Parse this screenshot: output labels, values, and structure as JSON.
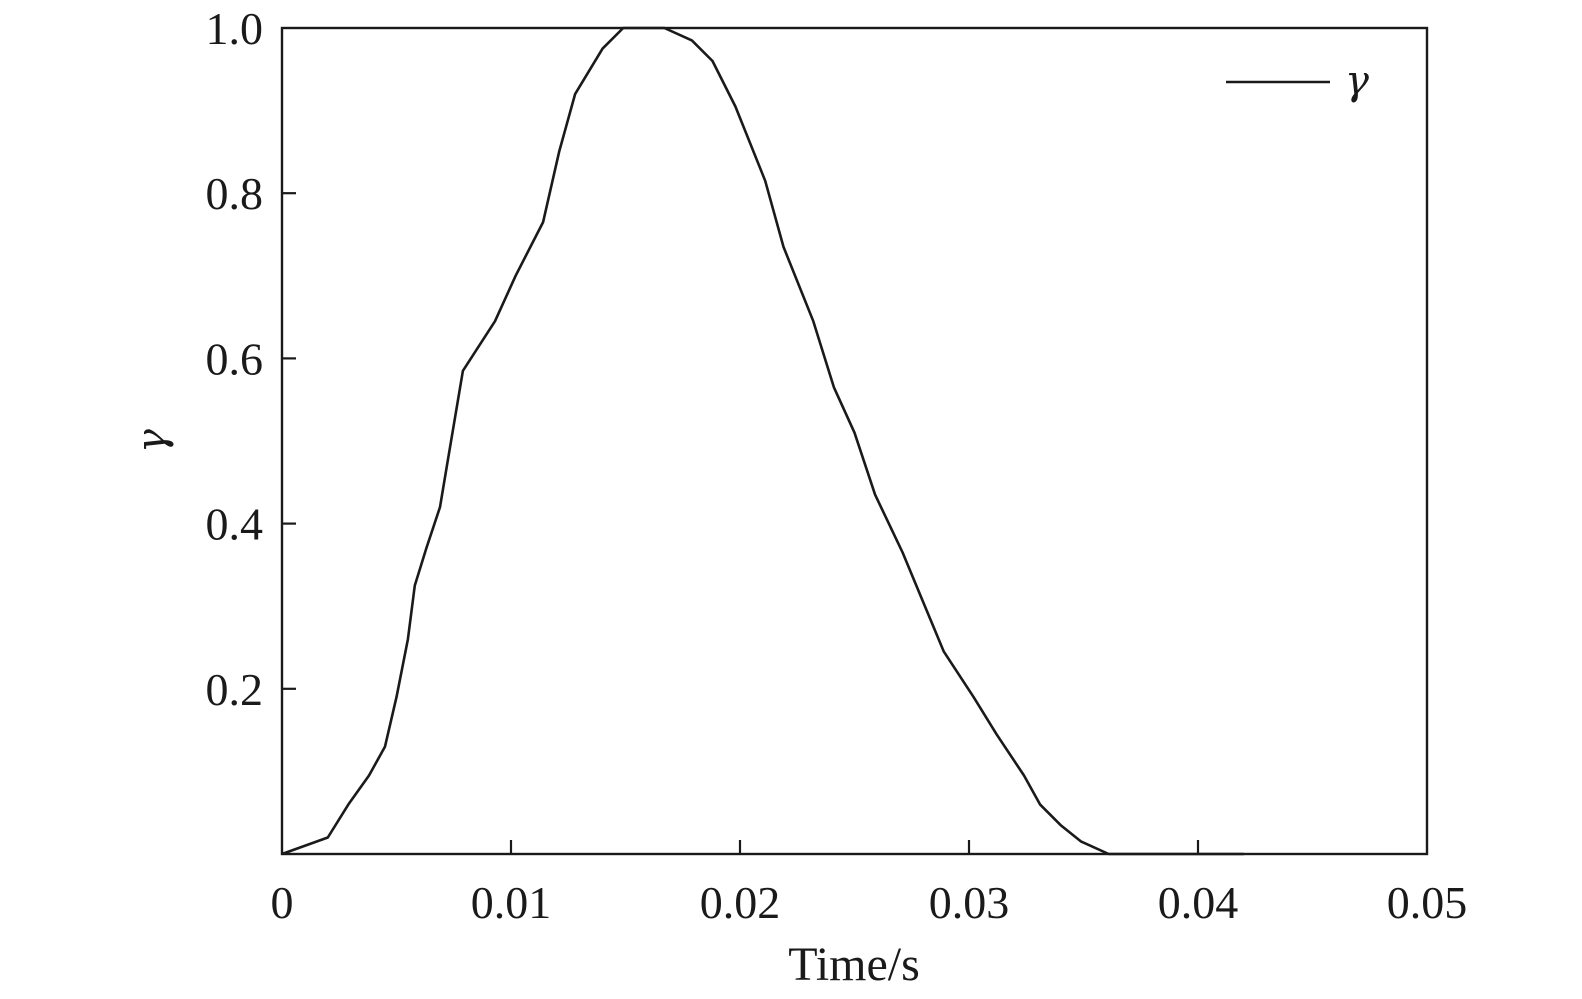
{
  "chart_data": {
    "type": "line",
    "xlabel": "Time/s",
    "ylabel": "γ",
    "xlim": [
      0,
      0.05
    ],
    "ylim": [
      0,
      1.0
    ],
    "x_ticks": [
      0,
      0.01,
      0.02,
      0.03,
      0.04,
      0.05
    ],
    "x_tick_labels": [
      "0",
      "0.01",
      "0.02",
      "0.03",
      "0.04",
      "0.05"
    ],
    "y_ticks": [
      0.2,
      0.4,
      0.6,
      0.8,
      1.0
    ],
    "y_tick_labels": [
      "0.2",
      "0.4",
      "0.6",
      "0.8",
      "1.0"
    ],
    "grid": false,
    "legend": {
      "position": "top-right",
      "entries": [
        "γ"
      ]
    },
    "colors": {
      "line": "#1a1a1a",
      "axes": "#1a1a1a"
    },
    "series": [
      {
        "name": "γ",
        "x": [
          0,
          0.002,
          0.0029,
          0.0038,
          0.0045,
          0.005,
          0.0055,
          0.0058,
          0.0063,
          0.0069,
          0.0072,
          0.0079,
          0.0093,
          0.0102,
          0.0114,
          0.0121,
          0.0128,
          0.014,
          0.0149,
          0.0158,
          0.0167,
          0.0179,
          0.0188,
          0.0198,
          0.0211,
          0.0219,
          0.0232,
          0.0241,
          0.025,
          0.0259,
          0.0271,
          0.028,
          0.0289,
          0.0302,
          0.0312,
          0.0324,
          0.0331,
          0.034,
          0.0349,
          0.0361,
          0.0396,
          0.042
        ],
        "y": [
          0,
          0.02,
          0.06,
          0.095,
          0.13,
          0.19,
          0.26,
          0.325,
          0.37,
          0.42,
          0.47,
          0.585,
          0.645,
          0.7,
          0.765,
          0.85,
          0.92,
          0.975,
          1.0,
          1.0,
          1.0,
          0.985,
          0.96,
          0.905,
          0.815,
          0.735,
          0.645,
          0.565,
          0.51,
          0.435,
          0.365,
          0.305,
          0.245,
          0.19,
          0.145,
          0.095,
          0.06,
          0.035,
          0.015,
          0,
          0,
          0
        ]
      }
    ]
  }
}
